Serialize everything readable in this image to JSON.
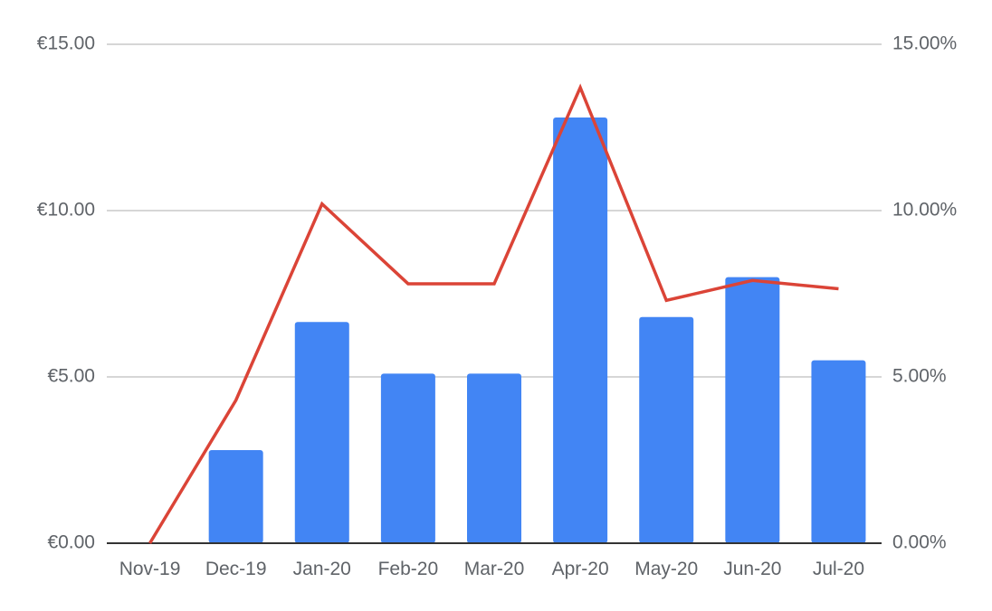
{
  "chart_data": {
    "type": "bar",
    "categories": [
      "Nov-19",
      "Dec-19",
      "Jan-20",
      "Feb-20",
      "Mar-20",
      "Apr-20",
      "May-20",
      "Jun-20",
      "Jul-20"
    ],
    "series": [
      {
        "type": "bar",
        "axis": "left",
        "color": "#4285f4",
        "values": [
          0,
          2.8,
          6.65,
          5.1,
          5.1,
          12.8,
          6.8,
          8.0,
          5.5
        ]
      },
      {
        "type": "line",
        "axis": "right",
        "color": "#db4437",
        "values": [
          0.0,
          4.3,
          10.2,
          7.8,
          7.8,
          13.7,
          7.3,
          7.9,
          7.65
        ]
      }
    ],
    "y_left": {
      "min": 0,
      "max": 15,
      "ticks": [
        0,
        5,
        10,
        15
      ],
      "tick_labels": [
        "€0.00",
        "€5.00",
        "€10.00",
        "€15.00"
      ]
    },
    "y_right": {
      "min": 0,
      "max": 15,
      "ticks": [
        0,
        5,
        10,
        15
      ],
      "tick_labels": [
        "0.00%",
        "5.00%",
        "10.00%",
        "15.00%"
      ]
    },
    "grid": true,
    "legend": "none"
  }
}
